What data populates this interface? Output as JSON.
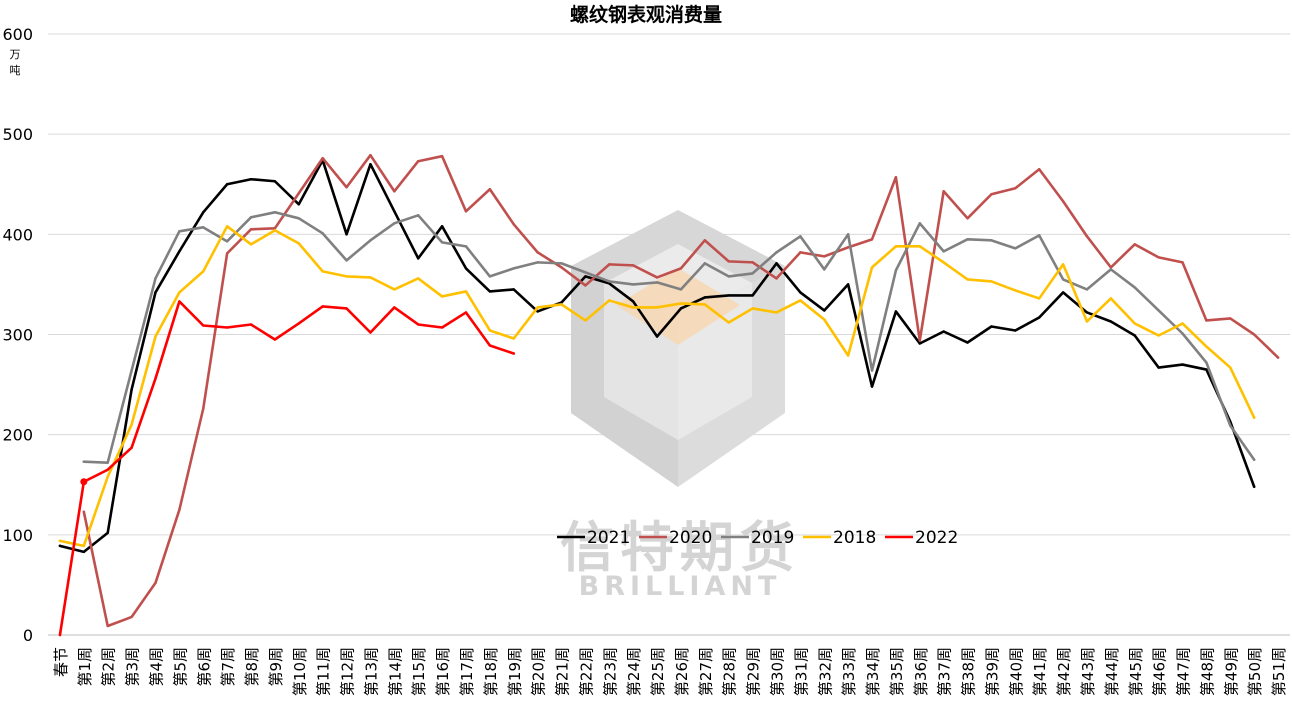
{
  "chart_data": {
    "type": "line",
    "title": "螺纹钢表观消费量",
    "ylabel": "万吨",
    "ylim": [
      0,
      600
    ],
    "yticks": [
      0,
      100,
      200,
      300,
      400,
      500,
      600
    ],
    "grid": true,
    "legend_position": "center",
    "categories": [
      "春节",
      "第1周",
      "第2周",
      "第3周",
      "第4周",
      "第5周",
      "第6周",
      "第7周",
      "第8周",
      "第9周",
      "第10周",
      "第11周",
      "第12周",
      "第13周",
      "第14周",
      "第15周",
      "第16周",
      "第17周",
      "第18周",
      "第19周",
      "第20周",
      "第21周",
      "第22周",
      "第23周",
      "第24周",
      "第25周",
      "第26周",
      "第27周",
      "第28周",
      "第29周",
      "第30周",
      "第31周",
      "第32周",
      "第33周",
      "第34周",
      "第35周",
      "第36周",
      "第37周",
      "第38周",
      "第39周",
      "第40周",
      "第41周",
      "第42周",
      "第43周",
      "第44周",
      "第45周",
      "第46周",
      "第47周",
      "第48周",
      "第49周",
      "第50周",
      "第51周"
    ],
    "series": [
      {
        "name": "2021",
        "color": "#000000",
        "values": [
          89,
          83,
          102,
          245,
          342,
          383,
          422,
          450,
          455,
          453,
          430,
          474,
          400,
          470,
          423,
          376,
          408,
          366,
          343,
          345,
          323,
          332,
          358,
          351,
          333,
          298,
          326,
          337,
          339,
          339,
          371,
          342,
          324,
          350,
          248,
          323,
          291,
          303,
          292,
          308,
          304,
          317,
          342,
          322,
          313,
          299,
          267,
          270,
          265,
          213,
          148,
          null
        ]
      },
      {
        "name": "2020",
        "color": "#c0504d",
        "values": [
          null,
          123,
          9,
          18,
          52,
          125,
          226,
          381,
          405,
          406,
          441,
          476,
          447,
          479,
          443,
          473,
          478,
          423,
          445,
          410,
          382,
          367,
          349,
          370,
          369,
          357,
          366,
          394,
          373,
          372,
          356,
          382,
          378,
          387,
          395,
          457,
          294,
          443,
          416,
          440,
          446,
          465,
          433,
          398,
          367,
          390,
          377,
          372,
          314,
          316,
          300,
          277
        ]
      },
      {
        "name": "2019",
        "color": "#808080",
        "values": [
          null,
          173,
          172,
          264,
          356,
          403,
          407,
          393,
          417,
          422,
          416,
          401,
          374,
          394,
          411,
          419,
          392,
          388,
          358,
          366,
          372,
          371,
          362,
          353,
          350,
          352,
          345,
          371,
          358,
          361,
          382,
          398,
          365,
          400,
          264,
          364,
          411,
          383,
          395,
          394,
          386,
          399,
          355,
          345,
          365,
          347,
          324,
          301,
          272,
          209,
          175,
          null
        ]
      },
      {
        "name": "2018",
        "color": "#ffc000",
        "values": [
          94,
          89,
          158,
          210,
          298,
          342,
          363,
          408,
          390,
          404,
          391,
          363,
          358,
          357,
          345,
          356,
          338,
          343,
          304,
          296,
          327,
          330,
          314,
          334,
          327,
          327,
          331,
          330,
          312,
          326,
          322,
          334,
          315,
          279,
          367,
          388,
          388,
          372,
          355,
          353,
          344,
          336,
          370,
          313,
          336,
          311,
          299,
          311,
          288,
          267,
          217,
          null
        ]
      },
      {
        "name": "2022",
        "color": "#ff0000",
        "values": [
          0,
          153,
          165,
          187,
          256,
          333,
          309,
          307,
          310,
          295,
          311,
          328,
          326,
          302,
          327,
          310,
          307,
          322,
          289,
          281,
          null,
          null,
          null,
          null,
          null,
          null,
          null,
          null,
          null,
          null,
          null,
          null,
          null,
          null,
          null,
          null,
          null,
          null,
          null,
          null,
          null,
          null,
          null,
          null,
          null,
          null,
          null,
          null,
          null,
          null,
          null,
          null
        ]
      }
    ]
  },
  "watermark": {
    "brand_cn": "信特期货",
    "brand_en": "BRILLIANT"
  }
}
